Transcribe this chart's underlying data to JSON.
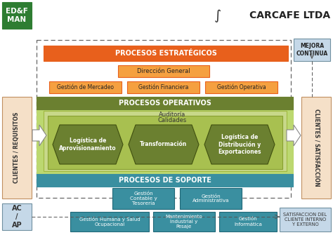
{
  "bg_color": "#ffffff",
  "title_carcafe": "CARCAFE LTDA",
  "ed_f_man_color": "#2e7d32",
  "ed_f_man_text": "ED&F\nMAN",
  "orange_color": "#e8601c",
  "orange_light_color": "#f5a040",
  "dark_green_color": "#6b8030",
  "light_green_color": "#9ab84a",
  "lighter_green_color": "#bcd870",
  "teal_color": "#3a8fa0",
  "light_tan_color": "#f5e0c8",
  "light_blue_box": "#c5d8e8",
  "dashed_border_color": "#666666",
  "procesos_estrategicos": "PROCESOS ESTRATÉGICOS",
  "direccion_general": "Dirección General",
  "gestion_mercadeo": "Gestión de Mercadeo",
  "gestion_financiera": "Gestión Financiera",
  "gestion_operativa": "Gestión Operativa",
  "procesos_operativos": "PROCESOS OPERATIVOS",
  "auditoria": "Auditoría",
  "calidades": "Calidades",
  "logistica_aprov": "Logística de\nAprovisionamiento",
  "transformacion": "Transformación",
  "logistica_dist": "Logística de\nDistribución y\nExportaciones",
  "procesos_soporte": "PROCESOS DE SOPORTE",
  "gestion_contable": "Gestión\nContable y\nTesorería",
  "gestion_admin": "Gestión\nAdministrativa",
  "gestion_humana": "Gestión Humana y Salud\nOcupacional",
  "mantenimiento": "Mantenimiento\nIndustrial y\nPesaje",
  "gestion_info": "Gestión\nInformática",
  "mejora_continua": "MEJORA\nCONTINUA",
  "clientes_req": "CLIENTES / REQUISITOS",
  "clientes_sat": "CLIENTES / SATISFACCIÓN",
  "ac_ap": "AC\n/\nAP",
  "satisfaccion": "SATISFACCION DEL\nCLIENTE INTERNO\nY EXTERNO"
}
